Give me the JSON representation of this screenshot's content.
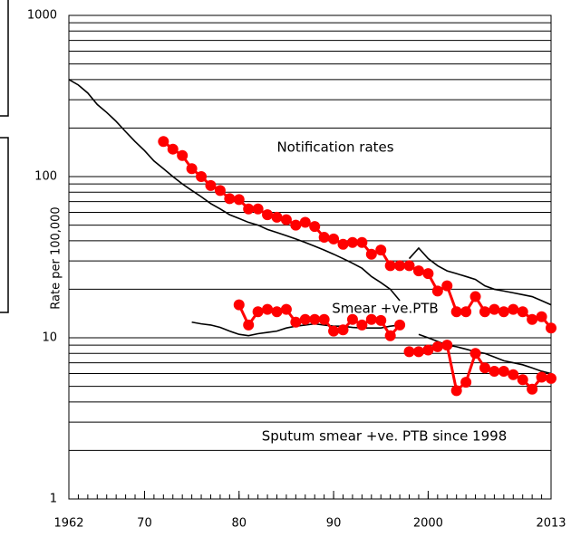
{
  "chart_data": {
    "type": "line",
    "y_label": "Rate per 100,000",
    "log_y": true,
    "grid": true,
    "xlim": [
      1962,
      2013
    ],
    "xticks": [
      1962,
      {
        "value": 1970,
        "label": "70"
      },
      {
        "value": 1980,
        "label": "80"
      },
      {
        "value": 1990,
        "label": "90"
      },
      2000,
      2013
    ],
    "ylim": [
      1,
      1000
    ],
    "yticks": [
      1,
      10,
      100,
      1000
    ],
    "ygrid": [
      2,
      3,
      4,
      5,
      6,
      7,
      8,
      9,
      20,
      30,
      40,
      50,
      60,
      70,
      80,
      90,
      200,
      300,
      400,
      500,
      600,
      700,
      800,
      900
    ],
    "annotations": [
      "Notification rates",
      "Smear +ve.PTB",
      "Sputum smear +ve. PTB since 1998"
    ],
    "series": [
      {
        "color": "#000000",
        "markers": false,
        "x": [
          1962,
          1963,
          1964,
          1965,
          1966,
          1967,
          1968,
          1969,
          1970,
          1971,
          1972,
          1973,
          1974,
          1975,
          1976,
          1977,
          1978,
          1979,
          1980,
          1981,
          1982,
          1983,
          1984,
          1985,
          1986,
          1987,
          1988,
          1989,
          1990,
          1991,
          1992,
          1993,
          1994,
          1995,
          1996,
          1997
        ],
        "values": [
          400,
          370,
          330,
          280,
          250,
          220,
          190,
          165,
          145,
          125,
          112,
          100,
          90,
          82,
          75,
          68,
          63,
          58,
          55,
          52,
          50,
          47,
          45,
          43,
          41,
          39,
          37,
          35,
          33,
          31,
          29,
          27,
          24,
          22,
          20,
          17
        ]
      },
      {
        "color": "#000000",
        "markers": false,
        "x": [
          1998,
          1999,
          2000,
          2001,
          2002,
          2003,
          2004,
          2005,
          2006,
          2007,
          2008,
          2009,
          2010,
          2011,
          2012,
          2013
        ],
        "values": [
          31,
          36,
          31,
          28,
          26,
          25,
          24,
          23,
          21,
          20,
          19.5,
          19,
          18.5,
          18,
          17,
          16
        ]
      },
      {
        "color": "#ff0000",
        "markers": true,
        "x": [
          1972,
          1973,
          1974,
          1975,
          1976,
          1977,
          1978,
          1979,
          1980,
          1981,
          1982,
          1983,
          1984,
          1985,
          1986,
          1987,
          1988,
          1989,
          1990,
          1991,
          1992,
          1993,
          1994,
          1995,
          1996,
          1997,
          1998,
          1999,
          2000,
          2001,
          2002,
          2003,
          2004,
          2005,
          2006,
          2007,
          2008,
          2009,
          2010,
          2011,
          2012,
          2013
        ],
        "values": [
          165,
          148,
          135,
          112,
          100,
          88,
          82,
          73,
          72,
          63,
          63,
          58,
          56,
          54,
          50,
          52,
          49,
          42,
          41,
          38,
          39,
          39,
          33,
          35,
          28,
          28,
          28,
          26,
          25,
          19.5,
          21,
          14.5,
          14.5,
          18,
          14.5,
          15,
          14.5,
          15,
          14.5,
          13,
          13.5,
          11.5
        ]
      },
      {
        "color": "#000000",
        "markers": false,
        "x": [
          1975,
          1976,
          1977,
          1978,
          1979,
          1980,
          1981,
          1982,
          1983,
          1984,
          1985,
          1986,
          1987,
          1988,
          1989,
          1990,
          1991,
          1992,
          1993,
          1994,
          1995,
          1996,
          1997
        ],
        "values": [
          12.5,
          12.2,
          12,
          11.6,
          11,
          10.5,
          10.3,
          10.6,
          10.8,
          11,
          11.5,
          11.8,
          12,
          12.2,
          12,
          11.8,
          11.8,
          11.6,
          11.5,
          11.5,
          11.5,
          11.8,
          12
        ]
      },
      {
        "color": "#000000",
        "markers": false,
        "x": [
          1999,
          2000,
          2001,
          2002,
          2003,
          2004,
          2005,
          2006,
          2007,
          2008,
          2009,
          2010,
          2011,
          2012,
          2013
        ],
        "values": [
          10.5,
          10,
          9.5,
          9,
          8.8,
          8.5,
          8.2,
          8,
          7.6,
          7.2,
          7,
          6.8,
          6.5,
          6.2,
          6
        ]
      },
      {
        "color": "#ff0000",
        "markers": true,
        "x": [
          1980,
          1981,
          1982,
          1983,
          1984,
          1985,
          1986,
          1987,
          1988,
          1989,
          1990,
          1991,
          1992,
          1993,
          1994,
          1995,
          1996,
          1997
        ],
        "values": [
          16,
          12,
          14.5,
          15,
          14.5,
          15,
          12.5,
          13,
          13,
          13,
          11,
          11.2,
          13,
          12,
          13,
          12.8,
          10.3,
          12
        ]
      },
      {
        "color": "#ff0000",
        "markers": true,
        "x": [
          1998,
          1999,
          2000,
          2001,
          2002,
          2003,
          2004,
          2005,
          2006,
          2007,
          2008,
          2009,
          2010,
          2011,
          2012,
          2013
        ],
        "values": [
          8.2,
          8.2,
          8.4,
          8.8,
          9,
          4.7,
          5.3,
          8,
          6.5,
          6.2,
          6.2,
          5.9,
          5.5,
          4.8,
          5.7,
          5.6
        ]
      }
    ]
  }
}
